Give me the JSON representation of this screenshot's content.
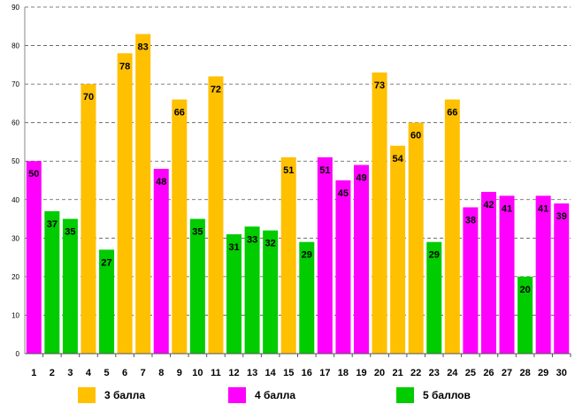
{
  "chart_data": {
    "type": "bar",
    "title": "",
    "xlabel": "",
    "ylabel": "",
    "ylim": [
      0,
      90
    ],
    "yticks": [
      0,
      10,
      20,
      30,
      40,
      50,
      60,
      70,
      80,
      90
    ],
    "grid": true,
    "categories": [
      "1",
      "2",
      "3",
      "4",
      "5",
      "6",
      "7",
      "8",
      "9",
      "10",
      "11",
      "12",
      "13",
      "14",
      "15",
      "16",
      "17",
      "18",
      "19",
      "20",
      "21",
      "22",
      "23",
      "24",
      "25",
      "26",
      "27",
      "28",
      "29",
      "30"
    ],
    "values": [
      50,
      37,
      35,
      70,
      27,
      78,
      83,
      48,
      66,
      35,
      72,
      31,
      33,
      32,
      51,
      29,
      51,
      45,
      49,
      73,
      54,
      60,
      29,
      66,
      38,
      42,
      41,
      20,
      41,
      39
    ],
    "groups": [
      "4 балла",
      "5 баллов",
      "5 баллов",
      "3 балла",
      "5 баллов",
      "3 балла",
      "3 балла",
      "4 балла",
      "3 балла",
      "5 баллов",
      "3 балла",
      "5 баллов",
      "5 баллов",
      "5 баллов",
      "3 балла",
      "5 баллов",
      "4 балла",
      "4 балла",
      "4 балла",
      "3 балла",
      "3 балла",
      "3 балла",
      "5 баллов",
      "3 балла",
      "4 балла",
      "4 балла",
      "4 балла",
      "5 баллов",
      "4 балла",
      "4 балла"
    ],
    "legend": [
      {
        "name": "3 балла",
        "color": "#FFC000"
      },
      {
        "name": "4 балла",
        "color": "#FF00FF"
      },
      {
        "name": "5 баллов",
        "color": "#00CC00"
      }
    ],
    "legend_position": "bottom"
  }
}
